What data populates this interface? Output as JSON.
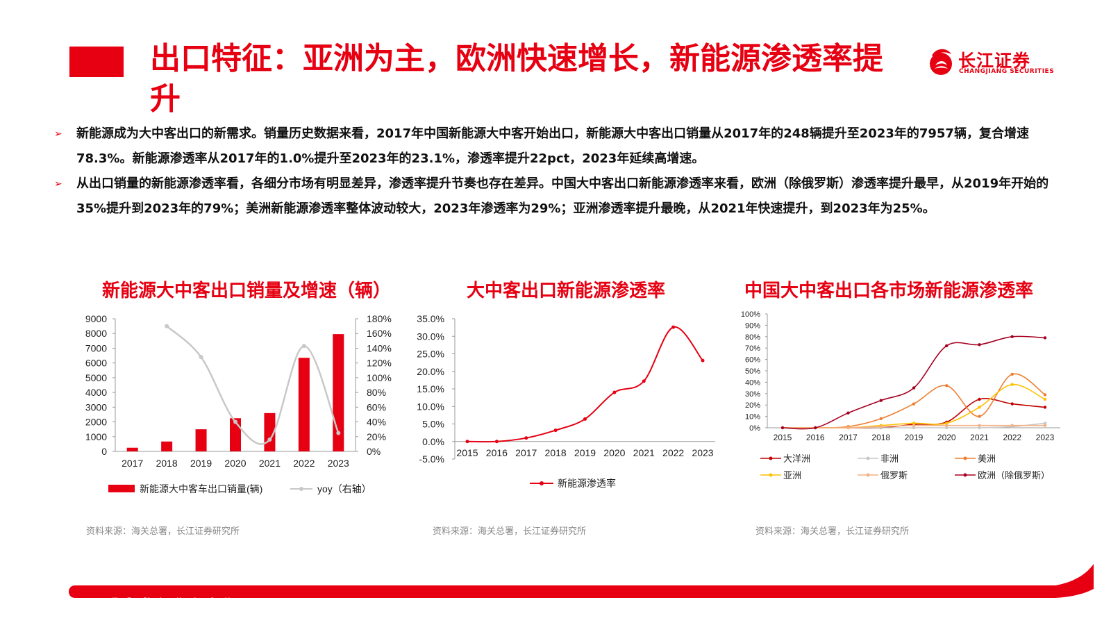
{
  "header": {
    "title": "出口特征：亚洲为主，欧洲快速增长，新能源渗透率提升",
    "logo_cn": "长江证券",
    "logo_en": "CHANGJIANG SECURITIES",
    "brand_color": "#e60012"
  },
  "bullets": [
    "新能源成为大中客出口的新需求。销量历史数据来看，2017年中国新能源大中客开始出口，新能源大中客出口销量从2017年的248辆提升至2023年的7957辆，复合增速78.3%。新能源渗透率从2017年的1.0%提升至2023年的23.1%，渗透率提升22pct，2023年延续高增速。",
    "从出口销量的新能源渗透率看，各细分市场有明显差异，渗透率提升节奏也存在差异。中国大中客出口新能源渗透率来看，欧洲（除俄罗斯）渗透率提升最早，从2019年开始的35%提升到2023年的79%；美洲新能源渗透率整体波动较大，2023年渗透率为29%；亚洲渗透率提升最晚，从2021年快速提升，到2023年为25%。"
  ],
  "sources": [
    "资料来源：海关总署，长江证券研究所",
    "资料来源：海关总署，长江证券研究所",
    "资料来源：海关总署，长江证券研究所"
  ],
  "footer": {
    "slogan": "汇 聚 财 智 共 享 成 长"
  },
  "chart_data": [
    {
      "type": "bar",
      "title": "新能源大中客出口销量及增速（辆）",
      "categories": [
        "2017",
        "2018",
        "2019",
        "2020",
        "2021",
        "2022",
        "2023"
      ],
      "y_ticks": [
        "0",
        "1000",
        "2000",
        "3000",
        "4000",
        "5000",
        "6000",
        "7000",
        "8000",
        "9000"
      ],
      "y2_ticks": [
        "0%",
        "20%",
        "40%",
        "60%",
        "80%",
        "100%",
        "120%",
        "140%",
        "160%",
        "180%"
      ],
      "ylim": [
        0,
        9000
      ],
      "y2lim": [
        0,
        1.8
      ],
      "series": [
        {
          "name": "新能源大中客车出口销量(辆)",
          "type": "bar",
          "axis": "left",
          "color": "#e60012",
          "values": [
            248,
            670,
            1500,
            2250,
            2600,
            6350,
            7957
          ]
        },
        {
          "name": "yoy（右轴）",
          "type": "line",
          "axis": "right",
          "color": "#c8c8c8",
          "values": [
            null,
            1.7,
            1.28,
            0.4,
            0.16,
            1.43,
            0.25
          ]
        }
      ],
      "legend_position": "bottom"
    },
    {
      "type": "line",
      "title": "大中客出口新能源渗透率",
      "categories": [
        "2015",
        "2016",
        "2017",
        "2018",
        "2019",
        "2020",
        "2021",
        "2022",
        "2023"
      ],
      "y_ticks": [
        "-5.0%",
        "0.0%",
        "5.0%",
        "10.0%",
        "15.0%",
        "20.0%",
        "25.0%",
        "30.0%",
        "35.0%"
      ],
      "ylim": [
        -0.05,
        0.35
      ],
      "series": [
        {
          "name": "新能源渗透率",
          "color": "#e60012",
          "values": [
            0.0,
            0.0,
            0.01,
            0.032,
            0.064,
            0.14,
            0.172,
            0.326,
            0.231
          ]
        }
      ],
      "legend_position": "bottom"
    },
    {
      "type": "line",
      "title": "中国大中客出口各市场新能源渗透率",
      "categories": [
        "2015",
        "2016",
        "2017",
        "2018",
        "2019",
        "2020",
        "2021",
        "2022",
        "2023"
      ],
      "y_ticks": [
        "0%",
        "10%",
        "20%",
        "30%",
        "40%",
        "50%",
        "60%",
        "70%",
        "80%",
        "90%",
        "100%"
      ],
      "ylim": [
        0,
        1.0
      ],
      "series": [
        {
          "name": "大洋洲",
          "color": "#c00000",
          "values": [
            0,
            0,
            0,
            0,
            0.03,
            0.05,
            0.25,
            0.21,
            0.18
          ]
        },
        {
          "name": "非洲",
          "color": "#c8c8c8",
          "values": [
            0,
            0,
            0,
            0,
            0,
            0,
            0,
            0.01,
            0.04
          ]
        },
        {
          "name": "美洲",
          "color": "#ed7d31",
          "values": [
            0,
            0,
            0.01,
            0.08,
            0.21,
            0.37,
            0.1,
            0.47,
            0.29
          ]
        },
        {
          "name": "亚洲",
          "color": "#ffc000",
          "values": [
            0,
            0,
            0,
            0.02,
            0.04,
            0.04,
            0.18,
            0.38,
            0.25
          ]
        },
        {
          "name": "俄罗斯",
          "color": "#f4b183",
          "values": [
            0,
            0,
            0,
            0.01,
            0.02,
            0.02,
            0.02,
            0.02,
            0.02
          ]
        },
        {
          "name": "欧洲（除俄罗斯）",
          "color": "#a50021",
          "values": [
            0,
            0,
            0.13,
            0.24,
            0.35,
            0.72,
            0.73,
            0.8,
            0.79
          ]
        }
      ],
      "legend_position": "bottom"
    }
  ]
}
